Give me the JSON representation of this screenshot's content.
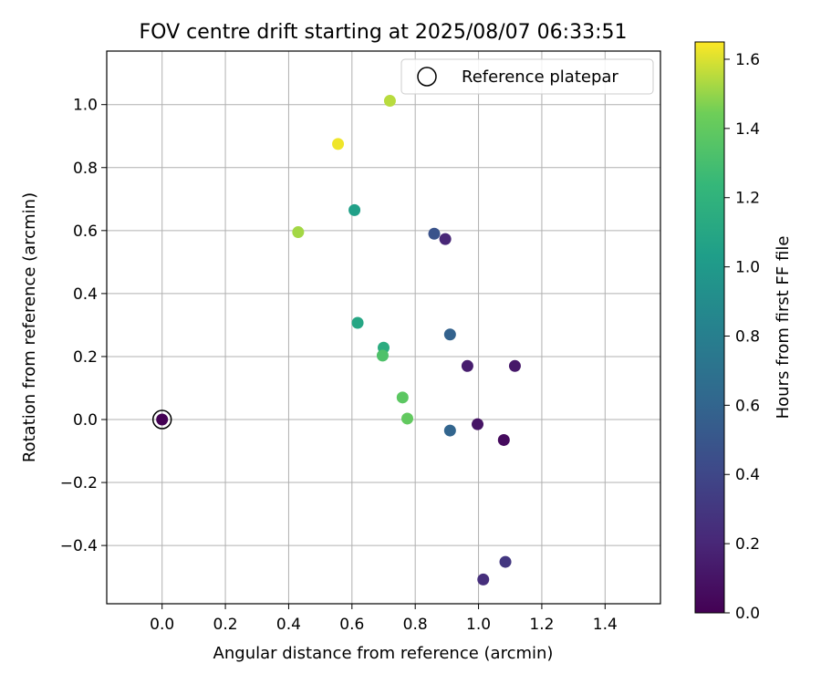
{
  "chart_data": {
    "type": "scatter",
    "title": "FOV centre drift starting at 2025/08/07 06:33:51",
    "xlabel": "Angular distance from reference (arcmin)",
    "ylabel": "Rotation from reference (arcmin)",
    "xlim": [
      -0.175,
      1.575
    ],
    "ylim": [
      -0.585,
      1.17
    ],
    "xticks": [
      "0.0",
      "0.2",
      "0.4",
      "0.6",
      "0.8",
      "1.0",
      "1.2",
      "1.4"
    ],
    "yticks": [
      "−0.4",
      "−0.2",
      "0.0",
      "0.2",
      "0.4",
      "0.6",
      "0.8",
      "1.0"
    ],
    "grid": true,
    "legend": {
      "position": "top-right",
      "entries": [
        "Reference platepar"
      ]
    },
    "colorbar": {
      "label": "Hours from first FF file",
      "range": [
        0,
        1.65
      ],
      "ticks": [
        "0.0",
        "0.2",
        "0.4",
        "0.6",
        "0.8",
        "1.0",
        "1.2",
        "1.4",
        "1.6"
      ],
      "colormap": "viridis"
    },
    "reference_point": {
      "x": 0.0,
      "y": 0.0
    },
    "points": [
      {
        "x": 0.0,
        "y": 0.0,
        "hours": 0.0
      },
      {
        "x": 1.08,
        "y": -0.065,
        "hours": 0.05
      },
      {
        "x": 0.997,
        "y": -0.015,
        "hours": 0.1
      },
      {
        "x": 1.115,
        "y": 0.17,
        "hours": 0.12
      },
      {
        "x": 0.965,
        "y": 0.17,
        "hours": 0.15
      },
      {
        "x": 0.895,
        "y": 0.573,
        "hours": 0.2
      },
      {
        "x": 1.015,
        "y": -0.508,
        "hours": 0.25
      },
      {
        "x": 1.085,
        "y": -0.452,
        "hours": 0.3
      },
      {
        "x": 0.86,
        "y": 0.59,
        "hours": 0.48
      },
      {
        "x": 0.91,
        "y": 0.27,
        "hours": 0.58
      },
      {
        "x": 0.91,
        "y": -0.035,
        "hours": 0.6
      },
      {
        "x": 0.608,
        "y": 0.665,
        "hours": 1.05
      },
      {
        "x": 0.618,
        "y": 0.307,
        "hours": 1.1
      },
      {
        "x": 0.7,
        "y": 0.228,
        "hours": 1.15
      },
      {
        "x": 0.697,
        "y": 0.203,
        "hours": 1.33
      },
      {
        "x": 0.76,
        "y": 0.07,
        "hours": 1.38
      },
      {
        "x": 0.775,
        "y": 0.003,
        "hours": 1.4
      },
      {
        "x": 0.43,
        "y": 0.595,
        "hours": 1.52
      },
      {
        "x": 0.72,
        "y": 1.012,
        "hours": 1.55
      },
      {
        "x": 0.556,
        "y": 0.875,
        "hours": 1.63
      }
    ]
  }
}
